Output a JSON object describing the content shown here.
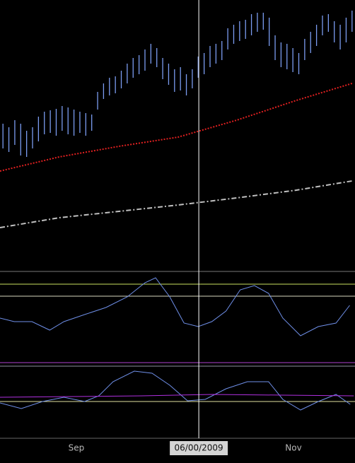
{
  "chart_data": [
    {
      "type": "price",
      "xlim": [
        -0.5,
        59.5
      ],
      "ylim": [
        0,
        380
      ],
      "x": [
        0,
        1,
        2,
        3,
        4,
        5,
        6,
        7,
        8,
        9,
        10,
        11,
        12,
        13,
        14,
        15,
        16,
        17,
        18,
        19,
        20,
        21,
        22,
        23,
        24,
        25,
        26,
        27,
        28,
        29,
        30,
        31,
        32,
        33,
        34,
        35,
        36,
        37,
        38,
        39,
        40,
        41,
        42,
        43,
        44,
        45,
        46,
        47,
        48,
        49,
        50,
        51,
        52,
        53,
        54,
        55,
        56,
        57,
        58,
        59
      ],
      "color": "#7b9cf0",
      "high": [
        205,
        200,
        210,
        205,
        195,
        200,
        215,
        222,
        224,
        226,
        230,
        228,
        225,
        222,
        220,
        218,
        250,
        262,
        270,
        272,
        280,
        290,
        298,
        302,
        310,
        318,
        312,
        298,
        290,
        282,
        285,
        275,
        282,
        300,
        305,
        315,
        318,
        322,
        340,
        345,
        350,
        352,
        360,
        362,
        362,
        355,
        330,
        320,
        318,
        312,
        305,
        325,
        335,
        345,
        358,
        360,
        350,
        345,
        355,
        365
      ],
      "low": [
        170,
        165,
        175,
        160,
        158,
        170,
        180,
        190,
        192,
        188,
        195,
        190,
        188,
        192,
        188,
        195,
        225,
        240,
        245,
        248,
        255,
        262,
        270,
        275,
        280,
        290,
        285,
        268,
        260,
        250,
        252,
        245,
        255,
        270,
        275,
        285,
        290,
        295,
        310,
        318,
        322,
        325,
        330,
        335,
        338,
        315,
        295,
        285,
        282,
        278,
        275,
        295,
        305,
        315,
        330,
        335,
        320,
        310,
        320,
        335
      ],
      "lines": [
        {
          "color": "#e02020",
          "style": "dotted",
          "x": [
            -0.5,
            9.5,
            19.6,
            29.6,
            39.5,
            49.6,
            59
          ],
          "values": [
            138,
            158,
            173,
            186,
            210,
            238,
            262
          ]
        },
        {
          "color": "#c0c0c0",
          "style": "dashdot",
          "x": [
            -0.5,
            9.5,
            19.6,
            29.6,
            39.5,
            49.6,
            59
          ],
          "values": [
            58,
            72,
            81,
            90,
            100,
            111,
            124
          ]
        }
      ],
      "crosshair": {
        "value": 33.1,
        "label": "06/00/2009"
      }
    },
    {
      "type": "oscillator",
      "xlim": [
        -0.5,
        59.5
      ],
      "ylim": [
        0,
        130
      ],
      "levels": [
        {
          "value": 126,
          "color": "#777777"
        },
        {
          "value": 108,
          "color": "#c8e060"
        },
        {
          "value": 91,
          "color": "#d8d8c0"
        }
      ],
      "series": [
        {
          "color": "#6f8fe8",
          "x": [
            -0.5,
            1.9,
            4.9,
            7.9,
            10.3,
            13.8,
            17.4,
            21,
            24,
            25.8,
            28.2,
            30.6,
            33,
            35.3,
            37.7,
            40.1,
            42.5,
            44.9,
            47.3,
            50.3,
            53.3,
            56.3,
            58.6
          ],
          "values": [
            60,
            55,
            55,
            43,
            55,
            65,
            75,
            90,
            110,
            117,
            90,
            53,
            48,
            55,
            70,
            100,
            106,
            95,
            60,
            35,
            48,
            53,
            78
          ]
        }
      ]
    },
    {
      "type": "oscillator",
      "xlim": [
        -0.5,
        59.5
      ],
      "ylim": [
        0,
        108
      ],
      "levels": [
        {
          "value": 107,
          "color": "#b040d0"
        },
        {
          "value": 102,
          "color": "#9090a0"
        },
        {
          "value": 52,
          "color": "#e0e0a0"
        }
      ],
      "series": [
        {
          "color": "#6f8fe8",
          "x": [
            -0.5,
            3.1,
            6.7,
            10.3,
            13.8,
            16.2,
            18.6,
            22.2,
            25.2,
            28.2,
            31.2,
            34.2,
            37.7,
            41.3,
            44.9,
            47.3,
            50.3,
            53.3,
            56.3,
            58.7
          ],
          "values": [
            50,
            42,
            52,
            58,
            52,
            60,
            80,
            95,
            92,
            75,
            53,
            55,
            70,
            80,
            80,
            55,
            40,
            52,
            62,
            48
          ]
        },
        {
          "color": "#b030e0",
          "x": [
            -0.5,
            11.5,
            23.4,
            35.4,
            47.3,
            59.3
          ],
          "values": [
            58,
            59,
            60,
            62,
            61,
            60
          ]
        }
      ],
      "xticks": [
        {
          "value": 12.4,
          "label": "Sep"
        },
        {
          "value": 49.1,
          "label": "Nov"
        }
      ]
    }
  ]
}
